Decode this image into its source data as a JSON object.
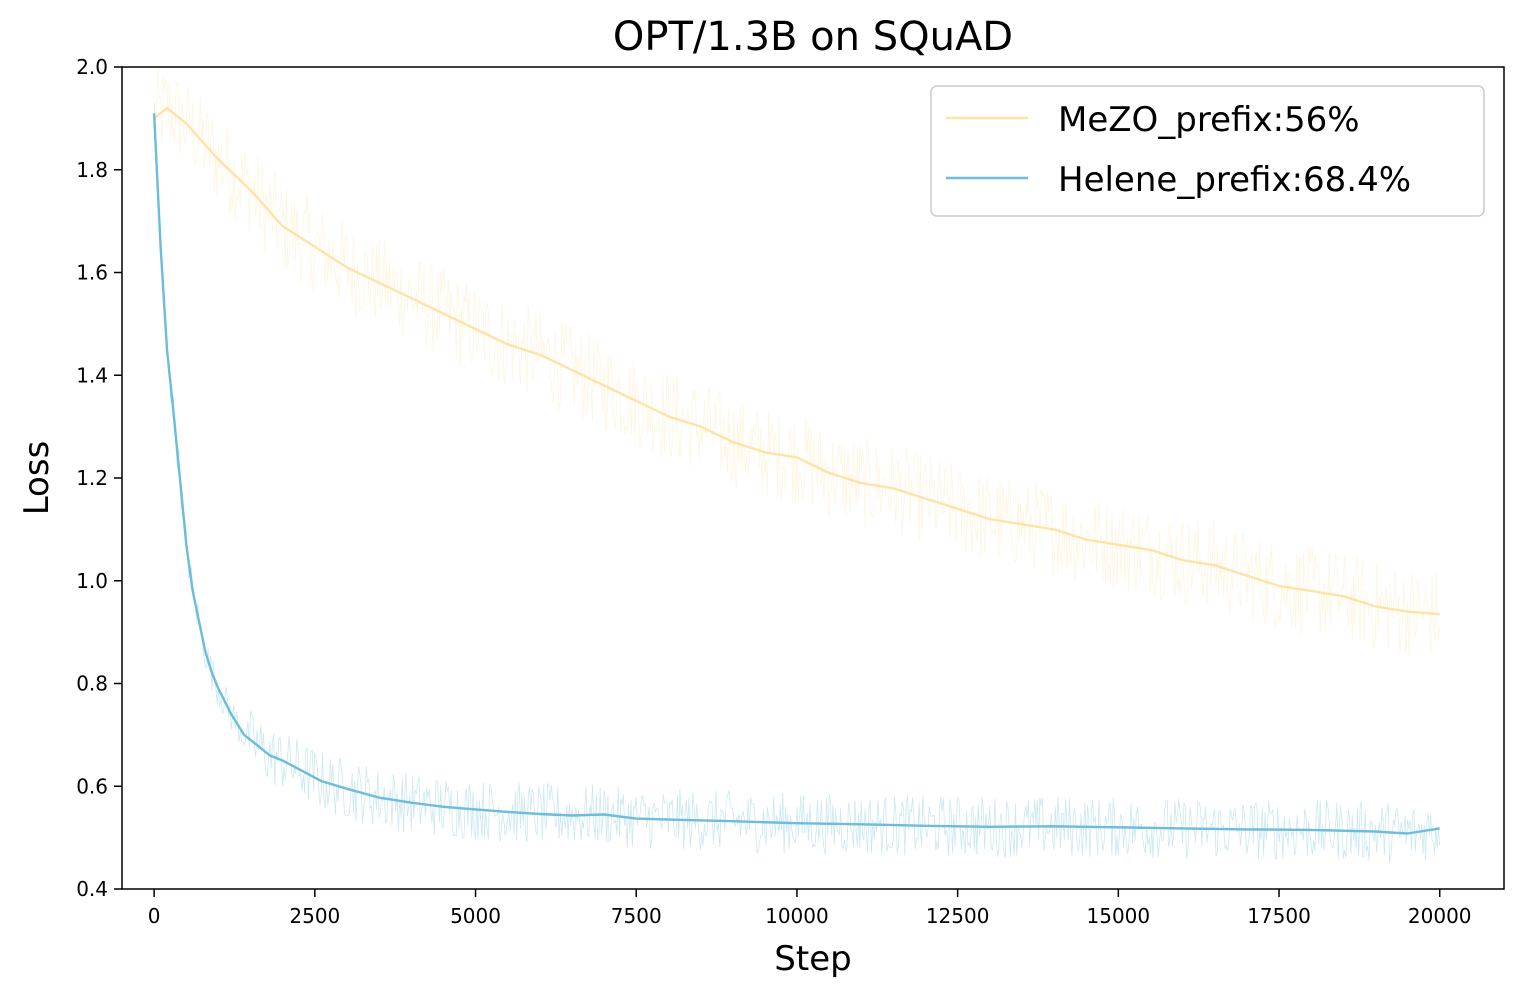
{
  "chart_data": {
    "type": "line",
    "title": "OPT/1.3B on SQuAD",
    "xlabel": "Step",
    "ylabel": "Loss",
    "xlim": [
      -500,
      21000
    ],
    "ylim": [
      0.4,
      2.0
    ],
    "xticks": [
      0,
      2500,
      5000,
      7500,
      10000,
      12500,
      15000,
      17500,
      20000
    ],
    "xtick_labels": [
      "0",
      "2500",
      "5000",
      "7500",
      "10000",
      "12500",
      "15000",
      "17500",
      "20000"
    ],
    "yticks": [
      0.4,
      0.6,
      0.8,
      1.0,
      1.2,
      1.4,
      1.6,
      1.8,
      2.0
    ],
    "ytick_labels": [
      "0.4",
      "0.6",
      "0.8",
      "1.0",
      "1.2",
      "1.4",
      "1.6",
      "1.8",
      "2.0"
    ],
    "grid": false,
    "legend_position": "top-right",
    "series": [
      {
        "name": "MeZO_prefix:56%",
        "color": "#fee3a8",
        "x": [
          0,
          200,
          500,
          1000,
          1500,
          2000,
          2500,
          3000,
          3500,
          4000,
          4500,
          5000,
          5500,
          6000,
          6500,
          7000,
          7500,
          8000,
          8500,
          9000,
          9500,
          10000,
          10500,
          11000,
          11500,
          12000,
          12500,
          13000,
          13500,
          14000,
          14500,
          15000,
          15500,
          16000,
          16500,
          17000,
          17500,
          18000,
          18500,
          19000,
          19500,
          20000
        ],
        "values": [
          1.9,
          1.92,
          1.89,
          1.82,
          1.76,
          1.69,
          1.65,
          1.61,
          1.58,
          1.55,
          1.52,
          1.49,
          1.46,
          1.44,
          1.41,
          1.38,
          1.35,
          1.32,
          1.3,
          1.27,
          1.25,
          1.24,
          1.21,
          1.19,
          1.18,
          1.16,
          1.14,
          1.12,
          1.11,
          1.1,
          1.08,
          1.07,
          1.06,
          1.04,
          1.03,
          1.01,
          0.99,
          0.98,
          0.97,
          0.95,
          0.94,
          0.935
        ]
      },
      {
        "name": "Helene_prefix:68.4%",
        "color": "#6dbcd9",
        "x": [
          0,
          100,
          200,
          300,
          400,
          500,
          600,
          700,
          800,
          900,
          1000,
          1200,
          1400,
          1600,
          1800,
          2000,
          2300,
          2600,
          3000,
          3500,
          4000,
          4500,
          5000,
          5500,
          6000,
          6500,
          7000,
          7500,
          8000,
          9000,
          10000,
          11000,
          12000,
          13000,
          14000,
          15000,
          16000,
          17000,
          18000,
          19000,
          19500,
          20000
        ],
        "values": [
          1.91,
          1.65,
          1.45,
          1.33,
          1.2,
          1.07,
          0.98,
          0.92,
          0.86,
          0.82,
          0.79,
          0.74,
          0.7,
          0.68,
          0.66,
          0.65,
          0.63,
          0.61,
          0.595,
          0.578,
          0.568,
          0.56,
          0.555,
          0.55,
          0.546,
          0.543,
          0.545,
          0.537,
          0.535,
          0.532,
          0.528,
          0.526,
          0.523,
          0.521,
          0.522,
          0.52,
          0.518,
          0.516,
          0.515,
          0.512,
          0.508,
          0.518
        ]
      }
    ]
  }
}
